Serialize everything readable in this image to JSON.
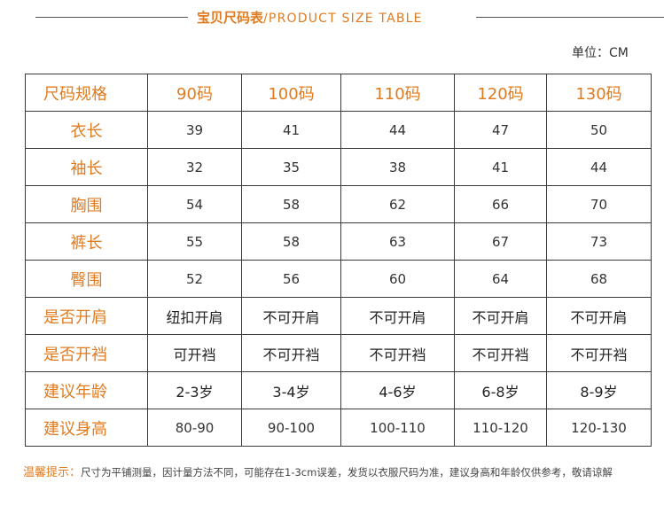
{
  "title": {
    "cn": "宝贝尺码表",
    "en": "/PRODUCT SIZE TABLE"
  },
  "unit": "单位：CM",
  "table": {
    "header_label": "尺码规格",
    "sizes": [
      "90码",
      "100码",
      "110码",
      "120码",
      "130码"
    ],
    "rows": [
      {
        "label": "衣长",
        "values": [
          "39",
          "41",
          "44",
          "47",
          "50"
        ]
      },
      {
        "label": "袖长",
        "values": [
          "32",
          "35",
          "38",
          "41",
          "44"
        ]
      },
      {
        "label": "胸围",
        "values": [
          "54",
          "58",
          "62",
          "66",
          "70"
        ]
      },
      {
        "label": "裤长",
        "values": [
          "55",
          "58",
          "63",
          "67",
          "73"
        ]
      },
      {
        "label": "臀围",
        "values": [
          "52",
          "56",
          "60",
          "64",
          "68"
        ]
      },
      {
        "label": "是否开肩",
        "values": [
          "纽扣开肩",
          "不可开肩",
          "不可开肩",
          "不可开肩",
          "不可开肩"
        ]
      },
      {
        "label": "是否开裆",
        "values": [
          "可开裆",
          "不可开裆",
          "不可开裆",
          "不可开裆",
          "不可开裆"
        ]
      },
      {
        "label": "建议年龄",
        "values": [
          "2-3岁",
          "3-4岁",
          "4-6岁",
          "6-8岁",
          "8-9岁"
        ]
      },
      {
        "label": "建议身高",
        "values": [
          "80-90",
          "90-100",
          "100-110",
          "110-120",
          "120-130"
        ]
      }
    ]
  },
  "footer": {
    "tip_label": "温馨提示：",
    "tip_text": "尺寸为平铺测量，因计量方法不同，可能存在1-3cm误差，发货以衣服尺码为准，建议身高和年龄仅供参考，敬请谅解"
  },
  "colors": {
    "accent": "#e07b1f",
    "border": "#3a3a3a"
  }
}
